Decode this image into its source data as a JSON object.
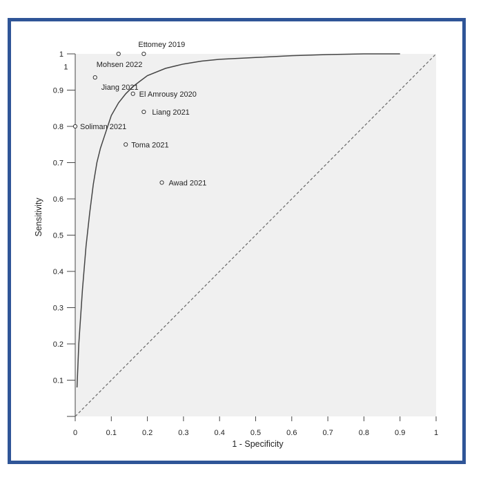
{
  "chart_data": {
    "type": "scatter",
    "xlabel": "1 - Specificity",
    "ylabel": "Sensitivity",
    "xlim": [
      0,
      1
    ],
    "ylim": [
      0,
      1
    ],
    "x_ticks": [
      "0",
      "0.1",
      "0.2",
      "0.3",
      "0.4",
      "0.5",
      "0.6",
      "0.7",
      "0.8",
      "0.9",
      "1"
    ],
    "y_ticks": [
      "0.1",
      "0.2",
      "0.3",
      "0.4",
      "0.5",
      "0.6",
      "0.7",
      "0.8",
      "0.9",
      "1"
    ],
    "grid": false,
    "background_color": "#f0f0f0",
    "frame_color": "#2f5597",
    "points": [
      {
        "label": "Ettomey 2019",
        "x": 0.19,
        "y": 1.0
      },
      {
        "label": "Mohsen 2022",
        "x": 0.12,
        "y": 1.0
      },
      {
        "label": "Jiang 2021",
        "x": 0.055,
        "y": 0.935
      },
      {
        "label": "El Amrousy 2020",
        "x": 0.16,
        "y": 0.89
      },
      {
        "label": "Liang 2021",
        "x": 0.19,
        "y": 0.84
      },
      {
        "label": "Soliman 2021",
        "x": 0.0,
        "y": 0.8
      },
      {
        "label": "Toma 2021",
        "x": 0.14,
        "y": 0.75
      },
      {
        "label": "Awad 2021",
        "x": 0.24,
        "y": 0.645
      }
    ],
    "extra_labels": [
      {
        "text": "1",
        "x": -0.02,
        "y": 0.965
      }
    ],
    "summary_curve": {
      "name": "SROC curve",
      "x": [
        0.005,
        0.01,
        0.02,
        0.03,
        0.04,
        0.05,
        0.06,
        0.07,
        0.08,
        0.1,
        0.12,
        0.14,
        0.16,
        0.18,
        0.2,
        0.25,
        0.3,
        0.35,
        0.4,
        0.5,
        0.6,
        0.7,
        0.8,
        0.9
      ],
      "y": [
        0.08,
        0.2,
        0.35,
        0.47,
        0.56,
        0.64,
        0.7,
        0.74,
        0.77,
        0.83,
        0.865,
        0.89,
        0.91,
        0.925,
        0.94,
        0.96,
        0.972,
        0.98,
        0.985,
        0.99,
        0.995,
        0.998,
        1.0,
        1.0
      ]
    },
    "reference_line": {
      "style": "dashed",
      "x": [
        0,
        1
      ],
      "y": [
        0,
        1
      ]
    }
  }
}
